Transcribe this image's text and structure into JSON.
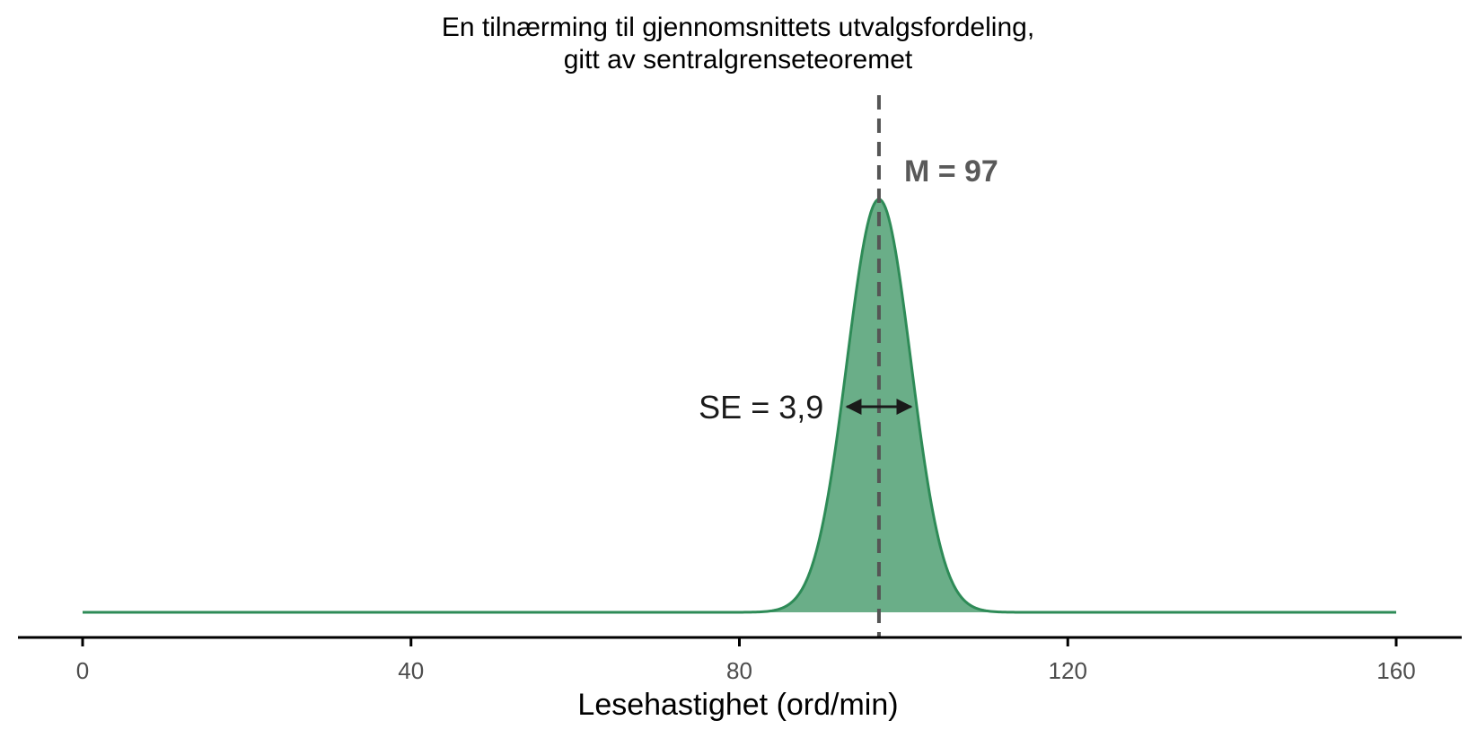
{
  "chart_data": {
    "type": "area",
    "title_lines": [
      "En tilnærming til gjennomsnittets utvalgsfordeling,",
      "gitt av sentralgrenseteoremet"
    ],
    "xlabel": "Lesehastighet (ord/min)",
    "ylabel": "",
    "xlim": [
      0,
      160
    ],
    "x_ticks": [
      0,
      40,
      80,
      120,
      160
    ],
    "x_tick_labels": [
      "0",
      "40",
      "80",
      "120",
      "160"
    ],
    "grid": false,
    "legend": "none",
    "series": [
      {
        "distribution": "normal",
        "mean": 97,
        "sd": 3.9,
        "x_range": [
          0,
          160
        ]
      }
    ],
    "annotations": {
      "mean_value": 97,
      "mean_label": "M = 97",
      "se_value": 3.9,
      "se_label": "SE = 3,9"
    },
    "colors": {
      "curve": "#2e8b57",
      "fill": "#6aae88",
      "mean_line": "#555555",
      "arrow": "#1a1a1a",
      "axis": "#000000"
    }
  }
}
